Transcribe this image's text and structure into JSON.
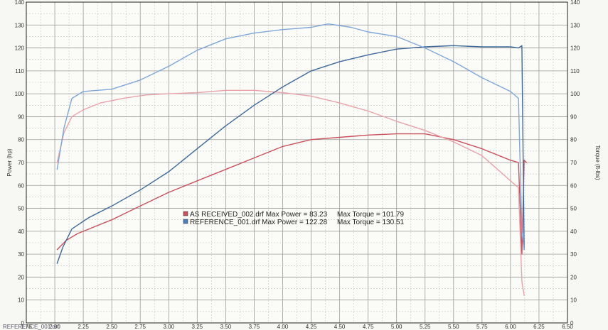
{
  "chart_data": {
    "type": "line",
    "x_range": [
      1.75,
      6.5
    ],
    "x_ticks": [
      "1.75",
      "2.00",
      "2.25",
      "2.50",
      "2.75",
      "3.00",
      "3.25",
      "3.50",
      "3.75",
      "4.00",
      "4.25",
      "4.50",
      "4.75",
      "5.00",
      "5.25",
      "5.50",
      "5.75",
      "6.00",
      "6.25",
      "6.50"
    ],
    "y_left": {
      "label": "Power (hp)",
      "range": [
        0,
        140
      ],
      "ticks": [
        "0",
        "10",
        "20",
        "30",
        "40",
        "50",
        "60",
        "70",
        "80",
        "90",
        "100",
        "110",
        "120",
        "130",
        "140"
      ]
    },
    "y_right": {
      "label": "Torque (ft-lbs)",
      "range": [
        0,
        140
      ],
      "ticks": [
        "0",
        "10",
        "20",
        "30",
        "40",
        "50",
        "60",
        "70",
        "80",
        "90",
        "100",
        "110",
        "120",
        "130",
        "140"
      ]
    },
    "grid": true,
    "series": [
      {
        "name": "AS RECEIVED_002.drf",
        "measure": "power",
        "axis": "left",
        "color": "#c8525c",
        "x": [
          2.02,
          2.1,
          2.2,
          2.35,
          2.5,
          2.75,
          3.0,
          3.25,
          3.5,
          3.75,
          4.0,
          4.25,
          4.5,
          4.75,
          5.0,
          5.25,
          5.5,
          5.75,
          6.0,
          6.07,
          6.1,
          6.12,
          6.14
        ],
        "y": [
          32,
          36,
          39,
          42,
          45,
          51,
          57,
          62,
          67,
          72,
          77,
          80,
          81,
          82,
          82.5,
          82.5,
          80,
          76,
          71,
          70,
          30,
          71,
          70
        ]
      },
      {
        "name": "AS RECEIVED_002.drf",
        "measure": "torque",
        "axis": "right",
        "color": "#e8a3a9",
        "x": [
          2.02,
          2.08,
          2.15,
          2.25,
          2.4,
          2.6,
          2.8,
          3.0,
          3.25,
          3.5,
          3.75,
          4.0,
          4.25,
          4.5,
          4.75,
          5.0,
          5.25,
          5.5,
          5.75,
          6.0,
          6.07,
          6.1,
          6.12
        ],
        "y": [
          70,
          83,
          90,
          93,
          96,
          98,
          99.5,
          100,
          100.5,
          101.5,
          101.5,
          100.5,
          99,
          96,
          92.5,
          88,
          84,
          79,
          73,
          62,
          59,
          18,
          12
        ]
      },
      {
        "name": "REFERENCE_001.drf",
        "measure": "power",
        "axis": "left",
        "color": "#3f6a9a",
        "x": [
          2.02,
          2.07,
          2.15,
          2.3,
          2.5,
          2.75,
          3.0,
          3.25,
          3.5,
          3.75,
          4.0,
          4.25,
          4.5,
          4.75,
          5.0,
          5.25,
          5.5,
          5.75,
          6.0,
          6.07,
          6.1,
          6.12
        ],
        "y": [
          26,
          33,
          41,
          46,
          51,
          58,
          66,
          76,
          86,
          95,
          103,
          110,
          114,
          117,
          119.5,
          120.5,
          121,
          120.5,
          120.5,
          120,
          121,
          32
        ]
      },
      {
        "name": "REFERENCE_001.drf",
        "measure": "torque",
        "axis": "right",
        "color": "#7ea7d8",
        "x": [
          2.02,
          2.08,
          2.15,
          2.25,
          2.5,
          2.75,
          3.0,
          3.25,
          3.5,
          3.75,
          4.0,
          4.25,
          4.4,
          4.6,
          4.75,
          5.0,
          5.25,
          5.5,
          5.75,
          6.0,
          6.07,
          6.1,
          6.12
        ],
        "y": [
          67,
          85,
          98,
          101,
          102,
          106,
          112,
          119,
          124,
          126.5,
          128,
          129,
          130.5,
          129,
          127,
          125,
          120,
          114,
          107,
          101,
          98,
          40,
          32
        ]
      }
    ],
    "legend": {
      "placement": "center",
      "rows": [
        {
          "color": "#c8525c",
          "text": "AS RECEIVED_002.drf Max Power = 83.23     Max Torque = 101.79"
        },
        {
          "color": "#4a7fc0",
          "text": "REFERENCE_001.drf Max Power = 122.28     Max Torque = 130.51"
        }
      ]
    }
  },
  "footer": {
    "text": "REFERENCE_001.drf"
  }
}
